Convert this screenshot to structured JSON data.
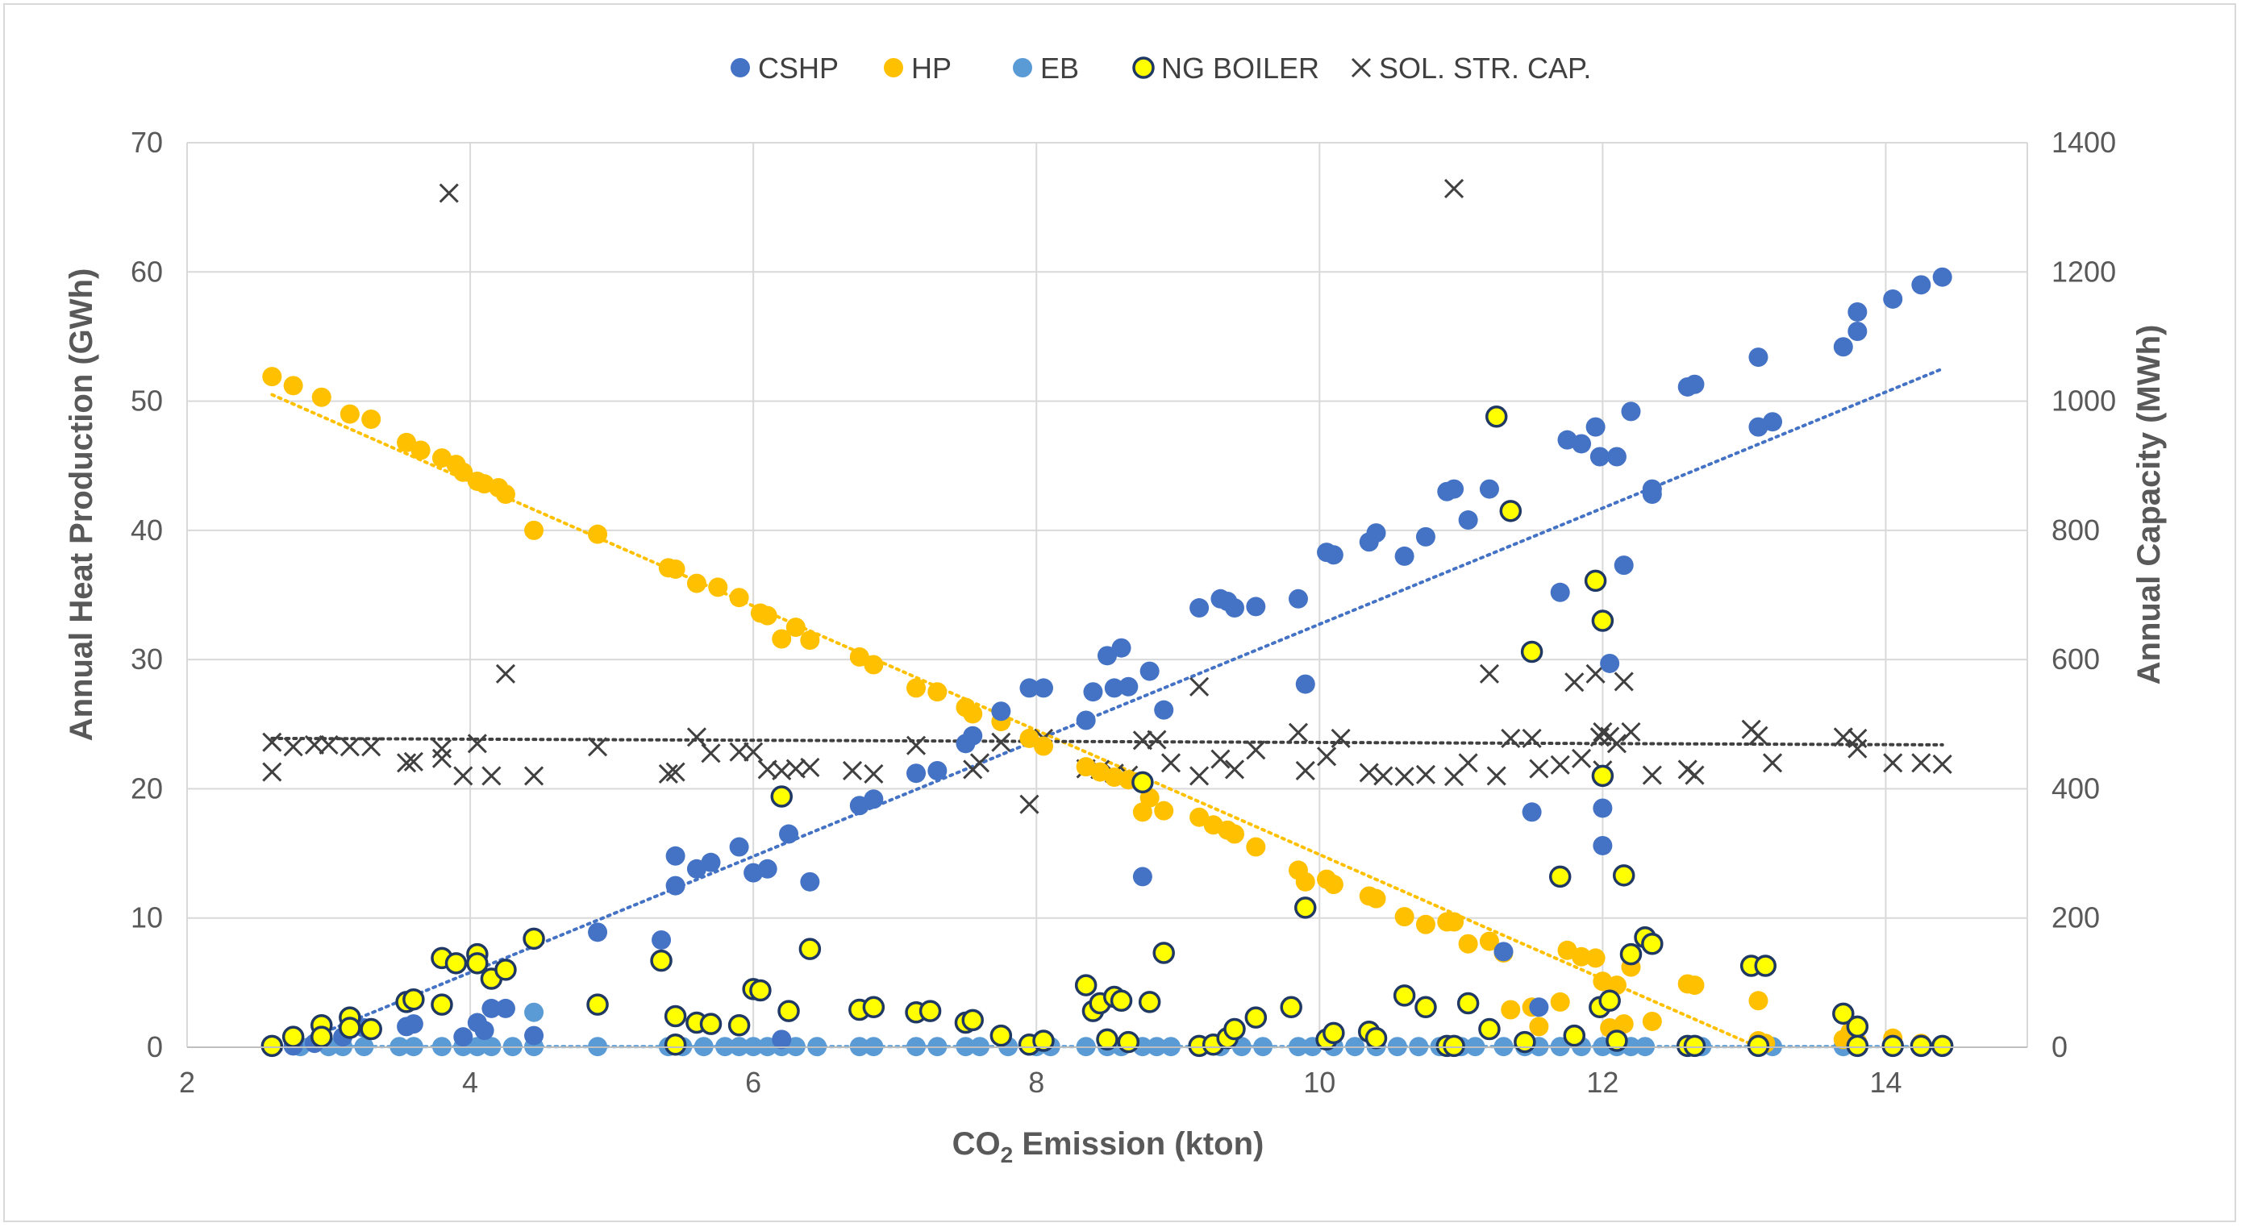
{
  "chart_data": {
    "type": "scatter",
    "title": "",
    "xlabel_main": "CO",
    "xlabel_sub": "2",
    "xlabel_rest": " Emission (kton)",
    "ylabel": "Annual Heat Production (GWh)",
    "y2label": "Annual Capacity (MWh)",
    "xlim": [
      2,
      15
    ],
    "ylim": [
      0,
      70
    ],
    "y2lim": [
      0,
      1400
    ],
    "xticks": [
      2,
      4,
      6,
      8,
      10,
      12,
      14
    ],
    "yticks": [
      0,
      10,
      20,
      30,
      40,
      50,
      60,
      70
    ],
    "y2ticks": [
      0,
      200,
      400,
      600,
      800,
      1000,
      1200,
      1400
    ],
    "grid": true,
    "legend_position": "top",
    "series": [
      {
        "name": "CSHP",
        "axis": "left",
        "marker": "circle",
        "color": "#4472c4",
        "x": [
          2.6,
          2.75,
          2.9,
          3.1,
          3.25,
          3.55,
          3.6,
          3.95,
          4.05,
          4.1,
          4.15,
          4.25,
          4.45,
          4.9,
          5.35,
          5.45,
          5.45,
          5.6,
          5.7,
          5.9,
          6.0,
          6.1,
          6.2,
          6.25,
          6.4,
          6.75,
          6.85,
          7.15,
          7.3,
          7.5,
          7.55,
          7.75,
          7.95,
          8.05,
          8.35,
          8.4,
          8.5,
          8.55,
          8.6,
          8.65,
          8.75,
          8.8,
          8.9,
          9.15,
          9.3,
          9.35,
          9.4,
          9.55,
          9.85,
          9.9,
          10.05,
          10.1,
          10.35,
          10.4,
          10.6,
          10.75,
          10.9,
          10.95,
          11.05,
          11.2,
          11.3,
          11.5,
          11.55,
          11.7,
          11.75,
          11.85,
          11.95,
          11.98,
          12.0,
          12.0,
          12.05,
          12.1,
          12.15,
          12.2,
          12.35,
          12.35,
          12.6,
          12.65,
          13.1,
          13.1,
          13.2,
          13.7,
          13.8,
          13.8,
          14.05,
          14.25,
          14.4
        ],
        "y": [
          0.1,
          0.1,
          0.3,
          0.8,
          1.5,
          1.6,
          1.8,
          0.8,
          1.9,
          1.3,
          3.0,
          3.0,
          0.9,
          8.9,
          8.3,
          12.5,
          14.8,
          13.8,
          14.3,
          15.5,
          13.5,
          13.8,
          0.6,
          16.5,
          12.8,
          18.7,
          19.2,
          21.2,
          21.4,
          23.5,
          24.1,
          26.0,
          27.8,
          27.8,
          25.3,
          27.5,
          30.3,
          27.8,
          30.9,
          27.9,
          13.2,
          29.1,
          26.1,
          34.0,
          34.7,
          34.5,
          34.0,
          34.1,
          34.7,
          28.1,
          38.3,
          38.1,
          39.1,
          39.8,
          38.0,
          39.5,
          43.0,
          43.2,
          40.8,
          43.2,
          7.4,
          18.2,
          3.1,
          35.2,
          47.0,
          46.7,
          48.0,
          45.7,
          15.6,
          18.5,
          29.7,
          45.7,
          37.3,
          49.2,
          42.8,
          43.2,
          51.1,
          51.3,
          48.0,
          53.4,
          48.4,
          54.2,
          55.4,
          56.9,
          57.9,
          59.0,
          59.6
        ]
      },
      {
        "name": "HP",
        "axis": "left",
        "marker": "circle",
        "color": "#ffc000",
        "x": [
          2.6,
          2.75,
          2.95,
          3.15,
          3.3,
          3.55,
          3.65,
          3.8,
          3.9,
          3.95,
          4.05,
          4.1,
          4.2,
          4.25,
          4.45,
          4.9,
          5.4,
          5.45,
          5.6,
          5.75,
          5.9,
          6.05,
          6.1,
          6.2,
          6.3,
          6.4,
          6.75,
          6.85,
          7.15,
          7.3,
          7.5,
          7.55,
          7.75,
          7.95,
          8.05,
          8.35,
          8.45,
          8.55,
          8.65,
          8.75,
          8.8,
          8.9,
          9.15,
          9.25,
          9.35,
          9.4,
          9.55,
          9.85,
          9.9,
          10.05,
          10.1,
          10.35,
          10.4,
          10.6,
          10.75,
          10.9,
          10.95,
          11.05,
          11.2,
          11.3,
          11.35,
          11.5,
          11.55,
          11.7,
          11.75,
          11.85,
          11.95,
          12.0,
          12.05,
          12.1,
          12.15,
          12.2,
          12.35,
          12.6,
          12.65,
          13.1,
          13.1,
          13.15,
          13.7,
          13.75,
          13.8,
          14.05,
          14.25,
          14.4
        ],
        "y": [
          51.9,
          51.2,
          50.3,
          49.0,
          48.6,
          46.8,
          46.2,
          45.6,
          45.1,
          44.5,
          43.8,
          43.6,
          43.3,
          42.8,
          40.0,
          39.7,
          37.1,
          37.0,
          35.9,
          35.6,
          34.8,
          33.6,
          33.4,
          31.6,
          32.5,
          31.5,
          30.2,
          29.6,
          27.8,
          27.5,
          26.3,
          25.8,
          25.2,
          23.9,
          23.3,
          21.7,
          21.3,
          20.9,
          20.7,
          18.2,
          19.3,
          18.3,
          17.8,
          17.2,
          16.8,
          16.5,
          15.5,
          13.7,
          12.8,
          13.0,
          12.6,
          11.7,
          11.5,
          10.1,
          9.5,
          9.7,
          9.7,
          8.0,
          8.2,
          7.3,
          2.9,
          3.1,
          1.6,
          3.5,
          7.5,
          7.0,
          6.9,
          5.1,
          1.5,
          4.8,
          1.8,
          6.2,
          2.0,
          4.9,
          4.8,
          0.5,
          3.6,
          0.3,
          0.6,
          1.2,
          0.4,
          0.7,
          0.3,
          0.1
        ]
      },
      {
        "name": "EB",
        "axis": "left",
        "marker": "circle",
        "color": "#5b9bd5",
        "x": [
          2.6,
          2.8,
          3.0,
          3.1,
          3.25,
          3.5,
          3.6,
          3.8,
          3.95,
          4.05,
          4.15,
          4.3,
          4.45,
          4.9,
          5.4,
          5.5,
          5.65,
          5.8,
          5.9,
          6.0,
          6.1,
          6.2,
          6.3,
          6.45,
          6.75,
          6.85,
          7.15,
          7.3,
          7.5,
          7.6,
          7.8,
          8.0,
          8.1,
          8.35,
          8.5,
          8.6,
          8.75,
          8.85,
          8.95,
          9.15,
          9.3,
          9.45,
          9.6,
          9.85,
          9.95,
          10.1,
          10.25,
          10.4,
          10.55,
          10.7,
          10.85,
          11.0,
          11.1,
          11.3,
          11.45,
          11.55,
          11.7,
          11.85,
          12.0,
          12.1,
          12.2,
          12.3,
          12.6,
          12.7,
          13.1,
          13.2,
          13.7,
          13.8,
          14.05,
          14.25,
          14.4,
          4.45
        ],
        "y": [
          0.05,
          0.05,
          0.05,
          0.05,
          0.05,
          0.05,
          0.05,
          0.05,
          0.05,
          0.05,
          0.05,
          0.05,
          0.05,
          0.05,
          0.05,
          0.05,
          0.05,
          0.05,
          0.05,
          0.05,
          0.05,
          0.05,
          0.05,
          0.05,
          0.05,
          0.05,
          0.05,
          0.05,
          0.05,
          0.05,
          0.05,
          0.05,
          0.05,
          0.05,
          0.05,
          0.05,
          0.05,
          0.05,
          0.05,
          0.05,
          0.05,
          0.05,
          0.05,
          0.05,
          0.05,
          0.05,
          0.05,
          0.05,
          0.05,
          0.05,
          0.05,
          0.05,
          0.05,
          0.05,
          0.05,
          0.05,
          0.05,
          0.05,
          0.05,
          0.05,
          0.05,
          0.05,
          0.05,
          0.05,
          0.05,
          0.05,
          0.05,
          0.05,
          0.05,
          0.05,
          0.05,
          2.7
        ]
      },
      {
        "name": "NG BOILER",
        "axis": "left",
        "marker": "circle-outlined",
        "color": "#ffff00",
        "x": [
          2.6,
          2.75,
          2.95,
          2.95,
          3.15,
          3.15,
          3.3,
          3.55,
          3.6,
          3.8,
          3.8,
          3.9,
          4.05,
          4.05,
          4.15,
          4.25,
          4.45,
          4.9,
          5.35,
          5.45,
          5.45,
          5.6,
          5.7,
          5.9,
          6.0,
          6.05,
          6.2,
          6.25,
          6.4,
          6.75,
          6.85,
          7.15,
          7.25,
          7.5,
          7.55,
          7.75,
          7.95,
          8.05,
          8.35,
          8.4,
          8.45,
          8.5,
          8.55,
          8.6,
          8.65,
          8.75,
          8.8,
          8.9,
          9.15,
          9.25,
          9.35,
          9.4,
          9.55,
          9.8,
          9.9,
          10.05,
          10.1,
          10.35,
          10.4,
          10.6,
          10.75,
          10.9,
          10.95,
          11.05,
          11.2,
          11.25,
          11.35,
          11.45,
          11.5,
          11.7,
          11.8,
          11.95,
          11.98,
          12.0,
          12.0,
          12.05,
          12.1,
          12.15,
          12.2,
          12.3,
          12.35,
          12.6,
          12.65,
          13.05,
          13.1,
          13.15,
          13.7,
          13.8,
          13.8,
          14.05,
          14.25,
          14.4
        ],
        "y": [
          0.1,
          0.8,
          1.7,
          0.8,
          2.3,
          1.5,
          1.4,
          3.5,
          3.7,
          3.3,
          6.9,
          6.5,
          7.2,
          6.5,
          5.3,
          6.0,
          8.4,
          3.3,
          6.7,
          2.4,
          0.2,
          1.9,
          1.8,
          1.7,
          4.5,
          4.4,
          19.4,
          2.8,
          7.6,
          2.9,
          3.1,
          2.7,
          2.8,
          1.9,
          2.1,
          0.9,
          0.2,
          0.5,
          4.8,
          2.8,
          3.4,
          0.6,
          3.9,
          3.6,
          0.4,
          20.5,
          3.5,
          7.3,
          0.1,
          0.2,
          0.7,
          1.4,
          2.3,
          3.1,
          10.8,
          0.6,
          1.1,
          1.2,
          0.7,
          4.0,
          3.1,
          0.1,
          0.1,
          3.4,
          1.4,
          48.8,
          41.5,
          0.4,
          30.6,
          13.2,
          0.9,
          36.1,
          3.1,
          33.0,
          21.0,
          3.6,
          0.5,
          13.3,
          7.2,
          8.5,
          8.0,
          0.1,
          0.1,
          6.3,
          0.1,
          6.3,
          2.6,
          1.6,
          0.1,
          0.1,
          0.1,
          0.1
        ]
      },
      {
        "name": "SOL. STR. CAP.",
        "axis": "right",
        "marker": "x",
        "color": "#404040",
        "x": [
          2.6,
          2.6,
          2.75,
          2.9,
          3.0,
          3.15,
          3.3,
          3.55,
          3.6,
          3.8,
          3.85,
          3.8,
          3.95,
          4.05,
          4.15,
          4.25,
          4.45,
          4.9,
          5.4,
          5.45,
          5.6,
          5.7,
          5.9,
          6.0,
          6.1,
          6.2,
          6.3,
          6.4,
          6.7,
          6.85,
          7.15,
          7.55,
          7.6,
          7.75,
          7.95,
          8.05,
          8.35,
          8.45,
          8.55,
          8.65,
          8.75,
          8.85,
          8.95,
          9.15,
          9.15,
          9.3,
          9.4,
          9.55,
          9.85,
          9.9,
          10.05,
          10.15,
          10.35,
          10.45,
          10.6,
          10.75,
          10.95,
          10.95,
          11.05,
          11.2,
          11.25,
          11.35,
          11.5,
          11.55,
          11.7,
          11.8,
          11.85,
          11.95,
          11.98,
          12.0,
          12.0,
          12.05,
          12.1,
          12.15,
          12.2,
          12.35,
          12.6,
          12.65,
          13.05,
          13.1,
          13.2,
          13.7,
          13.8,
          13.8,
          14.05,
          14.25,
          14.4
        ],
        "y": [
          472,
          426,
          465,
          468,
          468,
          465,
          465,
          440,
          442,
          462,
          1322,
          447,
          420,
          470,
          420,
          578,
          420,
          465,
          423,
          426,
          480,
          455,
          457,
          457,
          430,
          428,
          431,
          433,
          428,
          423,
          467,
          430,
          440,
          472,
          376,
          478,
          431,
          430,
          424,
          421,
          475,
          476,
          440,
          420,
          558,
          446,
          430,
          460,
          487,
          428,
          450,
          478,
          425,
          420,
          419,
          422,
          1329,
          419,
          440,
          578,
          420,
          478,
          478,
          431,
          437,
          565,
          447,
          578,
          480,
          488,
          429,
          481,
          470,
          566,
          488,
          421,
          430,
          421,
          492,
          482,
          440,
          480,
          478,
          462,
          440,
          440,
          438
        ]
      }
    ],
    "trendlines": [
      {
        "series": "CSHP",
        "axis": "left",
        "style": "dotted",
        "color": "#4472c4",
        "x": [
          2.6,
          14.4
        ],
        "y": [
          -0.5,
          52.5
        ]
      },
      {
        "series": "HP",
        "axis": "left",
        "style": "dotted",
        "color": "#ffc000",
        "x": [
          2.6,
          13.1
        ],
        "y": [
          50.5,
          0.0
        ]
      },
      {
        "series": "EB",
        "axis": "left",
        "style": "dotted",
        "color": "#5b9bd5",
        "x": [
          2.6,
          14.4
        ],
        "y": [
          0.05,
          0.05
        ]
      },
      {
        "series": "SOL. STR. CAP.",
        "axis": "right",
        "style": "dotted",
        "color": "#404040",
        "x": [
          2.6,
          14.4
        ],
        "y": [
          478,
          468
        ]
      }
    ]
  }
}
